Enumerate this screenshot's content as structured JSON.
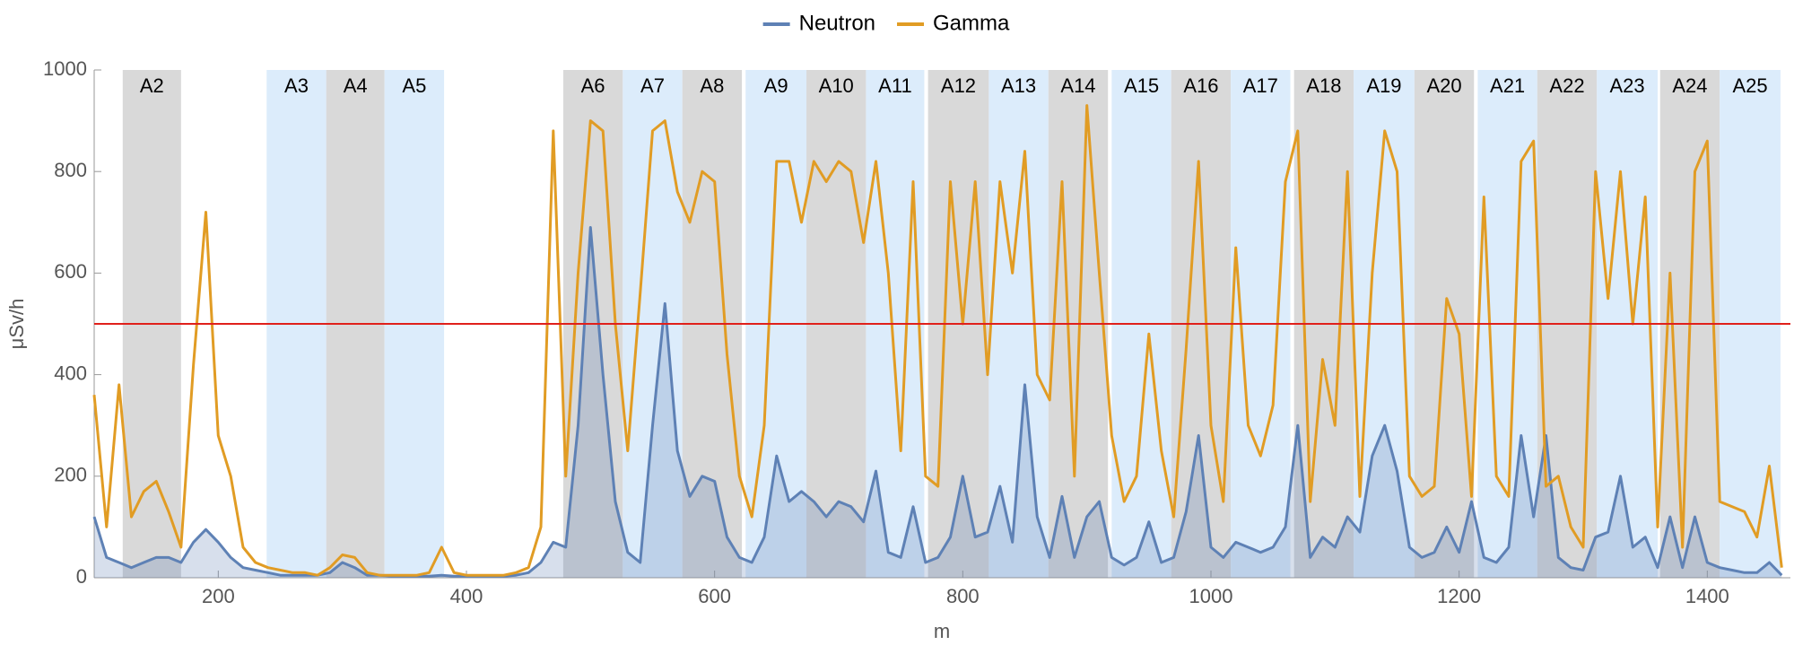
{
  "chart_data": {
    "type": "line",
    "x_label": "m",
    "y_label": "μSv/h",
    "xlim": [
      100,
      1467
    ],
    "ylim": [
      0,
      1000
    ],
    "xticks": [
      200,
      400,
      600,
      800,
      1000,
      1200,
      1400
    ],
    "yticks": [
      0,
      200,
      400,
      600,
      800,
      1000
    ],
    "legend": "top",
    "threshold": 500,
    "threshold_color": "#e0201b",
    "zones": [
      {
        "label": "A2",
        "start": 123,
        "end": 170,
        "color": "#d9d9d9"
      },
      {
        "label": "A3",
        "start": 239,
        "end": 287,
        "color": "#dcecfb"
      },
      {
        "label": "A4",
        "start": 287,
        "end": 334,
        "color": "#d9d9d9"
      },
      {
        "label": "A5",
        "start": 334,
        "end": 382,
        "color": "#dcecfb"
      },
      {
        "label": "A6",
        "start": 478,
        "end": 526,
        "color": "#d9d9d9"
      },
      {
        "label": "A7",
        "start": 526,
        "end": 574,
        "color": "#dcecfb"
      },
      {
        "label": "A8",
        "start": 574,
        "end": 622,
        "color": "#d9d9d9"
      },
      {
        "label": "A9",
        "start": 625,
        "end": 674,
        "color": "#dcecfb"
      },
      {
        "label": "A10",
        "start": 674,
        "end": 722,
        "color": "#d9d9d9"
      },
      {
        "label": "A11",
        "start": 722,
        "end": 769,
        "color": "#dcecfb"
      },
      {
        "label": "A12",
        "start": 772,
        "end": 821,
        "color": "#d9d9d9"
      },
      {
        "label": "A13",
        "start": 821,
        "end": 869,
        "color": "#dcecfb"
      },
      {
        "label": "A14",
        "start": 869,
        "end": 917,
        "color": "#d9d9d9"
      },
      {
        "label": "A15",
        "start": 920,
        "end": 968,
        "color": "#dcecfb"
      },
      {
        "label": "A16",
        "start": 968,
        "end": 1016,
        "color": "#d9d9d9"
      },
      {
        "label": "A17",
        "start": 1016,
        "end": 1064,
        "color": "#dcecfb"
      },
      {
        "label": "A18",
        "start": 1067,
        "end": 1115,
        "color": "#d9d9d9"
      },
      {
        "label": "A19",
        "start": 1115,
        "end": 1164,
        "color": "#dcecfb"
      },
      {
        "label": "A20",
        "start": 1164,
        "end": 1212,
        "color": "#d9d9d9"
      },
      {
        "label": "A21",
        "start": 1215,
        "end": 1263,
        "color": "#dcecfb"
      },
      {
        "label": "A22",
        "start": 1263,
        "end": 1311,
        "color": "#d9d9d9"
      },
      {
        "label": "A23",
        "start": 1311,
        "end": 1360,
        "color": "#dcecfb"
      },
      {
        "label": "A24",
        "start": 1362,
        "end": 1410,
        "color": "#d9d9d9"
      },
      {
        "label": "A25",
        "start": 1410,
        "end": 1459,
        "color": "#dcecfb"
      }
    ],
    "x": [
      100,
      110,
      120,
      130,
      140,
      150,
      160,
      170,
      180,
      190,
      200,
      210,
      220,
      230,
      240,
      250,
      260,
      270,
      280,
      290,
      300,
      310,
      320,
      330,
      340,
      350,
      360,
      370,
      380,
      390,
      400,
      410,
      420,
      430,
      440,
      450,
      460,
      470,
      480,
      490,
      500,
      510,
      520,
      530,
      540,
      550,
      560,
      570,
      580,
      590,
      600,
      610,
      620,
      630,
      640,
      650,
      660,
      670,
      680,
      690,
      700,
      710,
      720,
      730,
      740,
      750,
      760,
      770,
      780,
      790,
      800,
      810,
      820,
      830,
      840,
      850,
      860,
      870,
      880,
      890,
      900,
      910,
      920,
      930,
      940,
      950,
      960,
      970,
      980,
      990,
      1000,
      1010,
      1020,
      1030,
      1040,
      1050,
      1060,
      1070,
      1080,
      1090,
      1100,
      1110,
      1120,
      1130,
      1140,
      1150,
      1160,
      1170,
      1180,
      1190,
      1200,
      1210,
      1220,
      1230,
      1240,
      1250,
      1260,
      1270,
      1280,
      1290,
      1300,
      1310,
      1320,
      1330,
      1340,
      1350,
      1360,
      1370,
      1380,
      1390,
      1400,
      1410,
      1420,
      1430,
      1440,
      1450,
      1460
    ],
    "series": [
      {
        "name": "Neutron",
        "color": "#5e81b5",
        "fill": true,
        "values": [
          120,
          40,
          30,
          20,
          30,
          40,
          40,
          30,
          70,
          95,
          70,
          40,
          20,
          15,
          10,
          5,
          5,
          5,
          5,
          10,
          30,
          20,
          5,
          5,
          3,
          3,
          3,
          3,
          5,
          3,
          3,
          3,
          3,
          3,
          5,
          10,
          30,
          70,
          60,
          300,
          690,
          400,
          150,
          50,
          30,
          300,
          540,
          250,
          160,
          200,
          190,
          80,
          40,
          30,
          80,
          240,
          150,
          170,
          150,
          120,
          150,
          140,
          110,
          210,
          50,
          40,
          140,
          30,
          40,
          80,
          200,
          80,
          90,
          180,
          70,
          380,
          120,
          40,
          160,
          40,
          120,
          150,
          40,
          25,
          40,
          110,
          30,
          40,
          130,
          280,
          60,
          40,
          70,
          60,
          50,
          60,
          100,
          300,
          40,
          80,
          60,
          120,
          90,
          240,
          300,
          210,
          60,
          40,
          50,
          100,
          50,
          150,
          40,
          30,
          60,
          280,
          120,
          280,
          40,
          20,
          15,
          80,
          90,
          200,
          60,
          80,
          20,
          120,
          20,
          120,
          30,
          20,
          15,
          10,
          10,
          30,
          5
        ]
      },
      {
        "name": "Gamma",
        "color": "#e19c24",
        "fill": false,
        "values": [
          360,
          100,
          380,
          120,
          170,
          190,
          130,
          60,
          420,
          720,
          280,
          200,
          60,
          30,
          20,
          15,
          10,
          10,
          5,
          20,
          45,
          40,
          10,
          5,
          5,
          5,
          5,
          10,
          60,
          10,
          5,
          5,
          5,
          5,
          10,
          20,
          100,
          880,
          200,
          600,
          900,
          880,
          500,
          250,
          560,
          880,
          900,
          760,
          700,
          800,
          780,
          440,
          200,
          120,
          300,
          820,
          820,
          700,
          820,
          780,
          820,
          800,
          660,
          820,
          600,
          250,
          780,
          200,
          180,
          780,
          500,
          780,
          400,
          780,
          600,
          840,
          400,
          350,
          780,
          200,
          930,
          600,
          280,
          150,
          200,
          480,
          250,
          120,
          450,
          820,
          300,
          150,
          650,
          300,
          240,
          340,
          780,
          880,
          150,
          430,
          300,
          800,
          160,
          600,
          880,
          800,
          200,
          160,
          180,
          550,
          480,
          160,
          750,
          200,
          160,
          820,
          860,
          180,
          200,
          100,
          60,
          800,
          550,
          800,
          500,
          750,
          100,
          600,
          60,
          800,
          860,
          150,
          140,
          130,
          80,
          220,
          20
        ]
      }
    ]
  }
}
